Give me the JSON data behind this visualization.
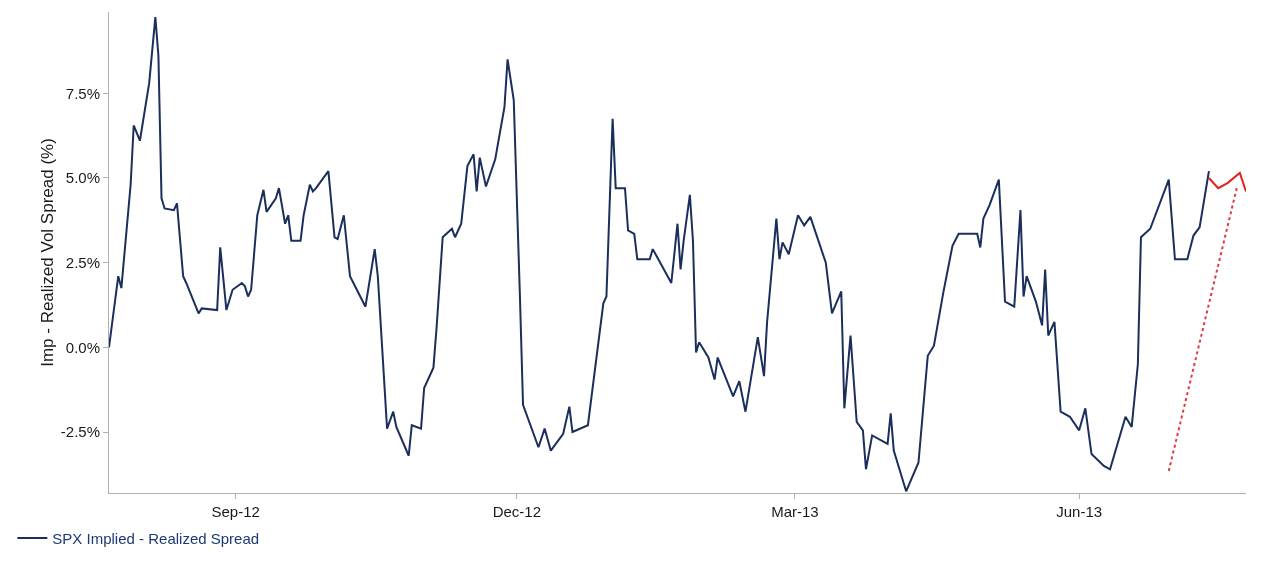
{
  "chart_data": {
    "type": "line",
    "ylabel": "Imp - Realized Vol Spread (%)",
    "xlim": [
      "2012-07-22",
      "2013-07-25"
    ],
    "xticks": [
      {
        "value": "2012-09-01",
        "label": "Sep-12"
      },
      {
        "value": "2012-12-01",
        "label": "Dec-12"
      },
      {
        "value": "2013-03-01",
        "label": "Mar-13"
      },
      {
        "value": "2013-06-01",
        "label": "Jun-13"
      }
    ],
    "ylim": [
      -4.3,
      9.9
    ],
    "yticks": [
      {
        "value": -2.5,
        "label": "-2.5%"
      },
      {
        "value": 0,
        "label": "0.0%"
      },
      {
        "value": 2.5,
        "label": "2.5%"
      },
      {
        "value": 5,
        "label": "5.0%"
      },
      {
        "value": 7.5,
        "label": "7.5%"
      }
    ],
    "grid": false,
    "legend": "bottom left",
    "series": [
      {
        "name": "SPX Implied - Realized Spread",
        "color": "#1b2f5c",
        "x": [
          "2012-07-22",
          "2012-07-25",
          "2012-07-26",
          "2012-07-29",
          "2012-07-30",
          "2012-08-01",
          "2012-08-04",
          "2012-08-06",
          "2012-08-07",
          "2012-08-08",
          "2012-08-09",
          "2012-08-12",
          "2012-08-13",
          "2012-08-15",
          "2012-08-16",
          "2012-08-20",
          "2012-08-21",
          "2012-08-26",
          "2012-08-27",
          "2012-08-29",
          "2012-08-31",
          "2012-09-03",
          "2012-09-04",
          "2012-09-05",
          "2012-09-06",
          "2012-09-08",
          "2012-09-10",
          "2012-09-11",
          "2012-09-14",
          "2012-09-15",
          "2012-09-17",
          "2012-09-18",
          "2012-09-19",
          "2012-09-22",
          "2012-09-23",
          "2012-09-25",
          "2012-09-26",
          "2012-09-27",
          "2012-10-01",
          "2012-10-03",
          "2012-10-04",
          "2012-10-06",
          "2012-10-08",
          "2012-10-13",
          "2012-10-16",
          "2012-10-17",
          "2012-10-20",
          "2012-10-22",
          "2012-10-23",
          "2012-10-27",
          "2012-10-28",
          "2012-10-31",
          "2012-11-01",
          "2012-11-04",
          "2012-11-05",
          "2012-11-07",
          "2012-11-10",
          "2012-11-11",
          "2012-11-13",
          "2012-11-15",
          "2012-11-17",
          "2012-11-18",
          "2012-11-19",
          "2012-11-21",
          "2012-11-24",
          "2012-11-27",
          "2012-11-28",
          "2012-11-30",
          "2012-12-02",
          "2012-12-03",
          "2012-12-08",
          "2012-12-10",
          "2012-12-12",
          "2012-12-16",
          "2012-12-18",
          "2012-12-19",
          "2012-12-24",
          "2012-12-29",
          "2012-12-30",
          "2013-01-01",
          "2013-01-02",
          "2013-01-05",
          "2013-01-06",
          "2013-01-08",
          "2013-01-09",
          "2013-01-13",
          "2013-01-14",
          "2013-01-20",
          "2013-01-22",
          "2013-01-23",
          "2013-01-24",
          "2013-01-26",
          "2013-01-27",
          "2013-01-28",
          "2013-01-29",
          "2013-02-01",
          "2013-02-03",
          "2013-02-04",
          "2013-02-09",
          "2013-02-11",
          "2013-02-13",
          "2013-02-17",
          "2013-02-19",
          "2013-02-20",
          "2013-02-23",
          "2013-02-24",
          "2013-02-25",
          "2013-02-27",
          "2013-03-02",
          "2013-03-04",
          "2013-03-06",
          "2013-03-11",
          "2013-03-13",
          "2013-03-16",
          "2013-03-17",
          "2013-03-19",
          "2013-03-21",
          "2013-03-23",
          "2013-03-24",
          "2013-03-26",
          "2013-03-31",
          "2013-04-01",
          "2013-04-02",
          "2013-04-06",
          "2013-04-10",
          "2013-04-13",
          "2013-04-15",
          "2013-04-18",
          "2013-04-21",
          "2013-04-23",
          "2013-04-29",
          "2013-04-30",
          "2013-05-01",
          "2013-05-03",
          "2013-05-06",
          "2013-05-08",
          "2013-05-11",
          "2013-05-13",
          "2013-05-14",
          "2013-05-15",
          "2013-05-18",
          "2013-05-20",
          "2013-05-21",
          "2013-05-22",
          "2013-05-24",
          "2013-05-26",
          "2013-05-29",
          "2013-06-01",
          "2013-06-03",
          "2013-06-05",
          "2013-06-09",
          "2013-06-11",
          "2013-06-16",
          "2013-06-18",
          "2013-06-20",
          "2013-06-21",
          "2013-06-24",
          "2013-06-30",
          "2013-07-02",
          "2013-07-06",
          "2013-07-08",
          "2013-07-10",
          "2013-07-13"
        ],
        "values": [
          0,
          2.1,
          1.75,
          4.8,
          6.55,
          6.1,
          7.8,
          9.75,
          8.6,
          4.4,
          4.1,
          4.05,
          4.25,
          2.1,
          1.9,
          1.0,
          1.15,
          1.1,
          2.95,
          1.1,
          1.7,
          1.9,
          1.8,
          1.5,
          1.7,
          3.9,
          4.65,
          4.0,
          4.4,
          4.7,
          3.65,
          3.9,
          3.15,
          3.15,
          3.9,
          4.8,
          4.6,
          4.7,
          5.2,
          3.25,
          3.2,
          3.9,
          2.1,
          1.2,
          2.9,
          2.1,
          -2.4,
          -1.9,
          -2.35,
          -3.2,
          -2.3,
          -2.4,
          -1.2,
          -0.6,
          0.55,
          3.25,
          3.5,
          3.25,
          3.65,
          5.35,
          5.7,
          4.6,
          5.6,
          4.75,
          5.55,
          7.1,
          8.5,
          7.3,
          1.5,
          -1.7,
          -2.95,
          -2.4,
          -3.05,
          -2.55,
          -1.75,
          -2.5,
          -2.3,
          1.3,
          1.5,
          6.75,
          4.7,
          4.7,
          3.45,
          3.35,
          2.6,
          2.6,
          2.9,
          1.9,
          3.65,
          2.3,
          3.15,
          4.5,
          3.15,
          -0.15,
          0.15,
          -0.3,
          -0.95,
          -0.3,
          -1.45,
          -1.0,
          -1.9,
          0.3,
          -0.85,
          0.75,
          3.8,
          2.6,
          3.1,
          2.75,
          3.9,
          3.6,
          3.85,
          2.5,
          1.0,
          1.65,
          -1.8,
          0.35,
          -2.2,
          -2.45,
          -3.6,
          -2.6,
          -2.85,
          -1.95,
          -3.05,
          -4.25,
          -3.4,
          -0.25,
          0.05,
          1.6,
          3.0,
          3.35,
          3.35,
          2.95,
          3.8,
          4.2,
          4.95,
          1.35,
          1.2,
          4.05,
          1.5,
          2.1,
          1.35,
          0.65,
          2.3,
          0.35,
          0.75,
          -1.9,
          -2.05,
          -2.45,
          -1.8,
          -3.15,
          -3.5,
          -3.6,
          -2.05,
          -2.35,
          -0.5,
          3.25,
          3.5,
          4.95,
          2.6,
          2.6,
          3.3,
          3.55,
          5.2
        ]
      },
      {
        "color": "#e3211c",
        "x": [
          "2013-07-13",
          "2013-07-16",
          "2013-07-19",
          "2013-07-23",
          "2013-07-25"
        ],
        "values": [
          5.0,
          4.7,
          4.85,
          5.15,
          4.6
        ]
      },
      {
        "color": "#e03a3a",
        "line_style": "dotted",
        "x": [
          "2013-06-30",
          "2013-07-22"
        ],
        "values": [
          -3.65,
          4.7
        ]
      }
    ]
  }
}
